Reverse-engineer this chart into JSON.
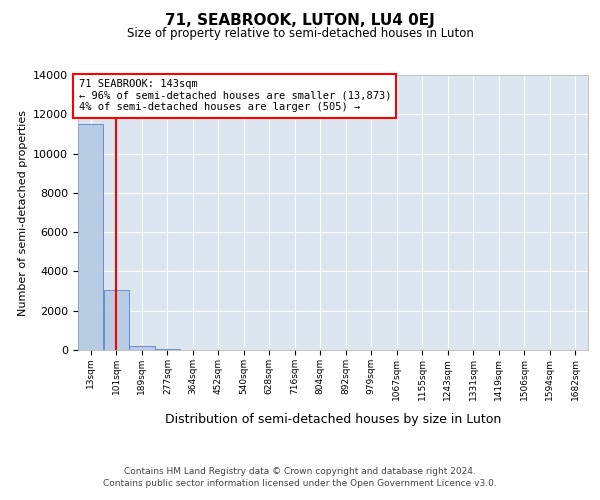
{
  "title": "71, SEABROOK, LUTON, LU4 0EJ",
  "subtitle": "Size of property relative to semi-detached houses in Luton",
  "xlabel": "Distribution of semi-detached houses by size in Luton",
  "ylabel": "Number of semi-detached properties",
  "property_size": 143,
  "annotation_text": "71 SEABROOK: 143sqm\n← 96% of semi-detached houses are smaller (13,873)\n4% of semi-detached houses are larger (505) →",
  "bar_edges": [
    13,
    101,
    189,
    277,
    364,
    452,
    540,
    628,
    716,
    804,
    892,
    979,
    1067,
    1155,
    1243,
    1331,
    1419,
    1506,
    1594,
    1682,
    1770
  ],
  "bar_heights": [
    11500,
    3050,
    200,
    50,
    20,
    10,
    5,
    3,
    2,
    2,
    1,
    1,
    1,
    1,
    0,
    0,
    0,
    0,
    0,
    0
  ],
  "bar_color": "#b8cce4",
  "bar_edge_color": "#4472c4",
  "vline_color": "#ff0000",
  "ylim": [
    0,
    14000
  ],
  "yticks": [
    0,
    2000,
    4000,
    6000,
    8000,
    10000,
    12000,
    14000
  ],
  "bg_color": "#dce6f1",
  "grid_color": "#ffffff",
  "footer_line1": "Contains HM Land Registry data © Crown copyright and database right 2024.",
  "footer_line2": "Contains public sector information licensed under the Open Government Licence v3.0."
}
